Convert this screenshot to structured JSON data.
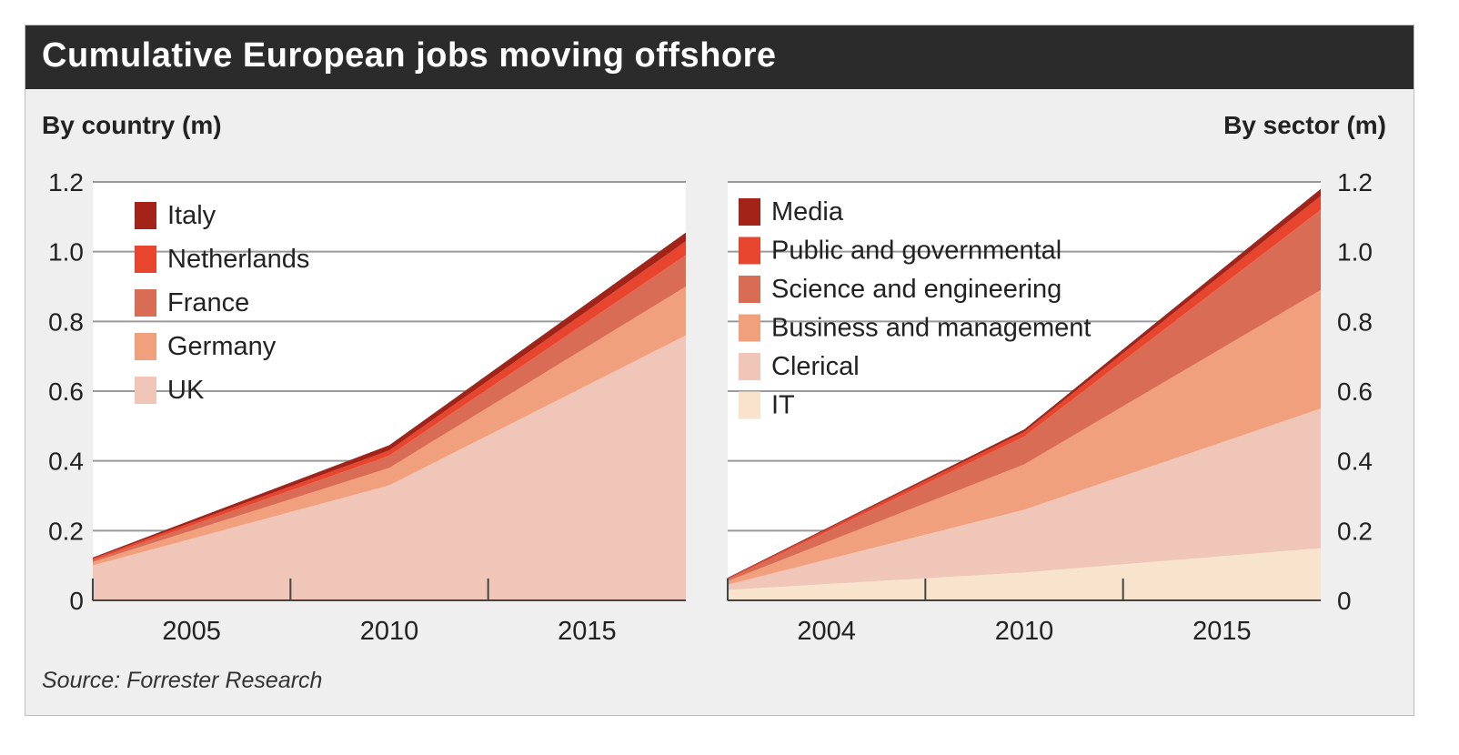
{
  "title": "Cumulative European  jobs moving offshore",
  "source": "Source: Forrester Research",
  "chart_data": [
    {
      "type": "area",
      "subtitle": "By country (m)",
      "stacked": true,
      "x": [
        2002.5,
        2010,
        2017.5
      ],
      "x_ticks": [
        "2005",
        "2010",
        "2015"
      ],
      "y_ticks": [
        "0",
        "0.2",
        "0.4",
        "0.6",
        "0.8",
        "1.0",
        "1.2"
      ],
      "ylim": [
        0,
        1.2
      ],
      "legend_position": "top-left",
      "series": [
        {
          "name": "UK",
          "values": [
            0.1,
            0.33,
            0.76
          ],
          "color": "#f0c6b8"
        },
        {
          "name": "Germany",
          "values": [
            0.01,
            0.05,
            0.14
          ],
          "color": "#f0a07d"
        },
        {
          "name": "France",
          "values": [
            0.005,
            0.035,
            0.09
          ],
          "color": "#d96c55"
        },
        {
          "name": "Netherlands",
          "values": [
            0.005,
            0.015,
            0.04
          ],
          "color": "#e8452e"
        },
        {
          "name": "Italy",
          "values": [
            0.003,
            0.015,
            0.025
          ],
          "color": "#a32318"
        }
      ]
    },
    {
      "type": "area",
      "subtitle": "By sector (m)",
      "stacked": true,
      "x": [
        2002.5,
        2010,
        2017.5
      ],
      "x_ticks": [
        "2004",
        "2010",
        "2015"
      ],
      "y_ticks": [
        "0",
        "0.2",
        "0.4",
        "0.6",
        "0.8",
        "1.0",
        "1.2"
      ],
      "ylim": [
        0,
        1.2
      ],
      "y_axis_side": "right",
      "legend_position": "top-left",
      "series": [
        {
          "name": "IT",
          "values": [
            0.03,
            0.08,
            0.15
          ],
          "color": "#f8e3cc"
        },
        {
          "name": "Clerical",
          "values": [
            0.015,
            0.18,
            0.4
          ],
          "color": "#f0c6b8"
        },
        {
          "name": "Business and management",
          "values": [
            0.01,
            0.13,
            0.34
          ],
          "color": "#f0a07d"
        },
        {
          "name": "Science and engineering",
          "values": [
            0.005,
            0.08,
            0.23
          ],
          "color": "#d96c55"
        },
        {
          "name": "Public and governmental",
          "values": [
            0.003,
            0.013,
            0.04
          ],
          "color": "#e8452e"
        },
        {
          "name": "Media",
          "values": [
            0.002,
            0.007,
            0.02
          ],
          "color": "#a32318"
        }
      ]
    }
  ]
}
